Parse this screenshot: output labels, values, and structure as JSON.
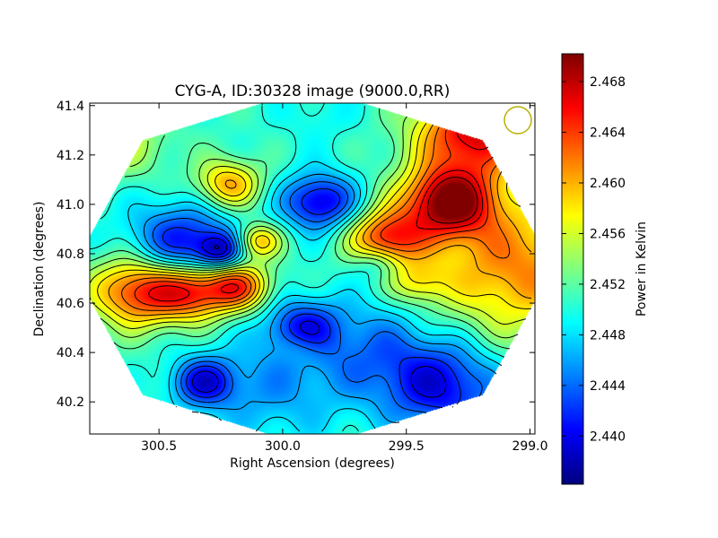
{
  "chart_data": {
    "type": "heatmap",
    "title": "CYG-A, ID:30328 image (9000.0,RR)",
    "xlabel": "Right Ascension (degrees)",
    "ylabel": "Declination (degrees)",
    "colorbar_label": "Power in Kelvin",
    "xlim": [
      300.78,
      298.98
    ],
    "ylim": [
      40.07,
      41.41
    ],
    "x_ticks": [
      {
        "value": 300.5,
        "label": "300.5"
      },
      {
        "value": 300.0,
        "label": "300.0"
      },
      {
        "value": 299.5,
        "label": "299.5"
      },
      {
        "value": 299.0,
        "label": "299.0"
      }
    ],
    "y_ticks": [
      {
        "value": 40.2,
        "label": "40.2"
      },
      {
        "value": 40.4,
        "label": "40.4"
      },
      {
        "value": 40.6,
        "label": "40.6"
      },
      {
        "value": 40.8,
        "label": "40.8"
      },
      {
        "value": 41.0,
        "label": "41.0"
      },
      {
        "value": 41.2,
        "label": "41.2"
      },
      {
        "value": 41.4,
        "label": "41.4"
      }
    ],
    "colorbar_range": [
      2.4362,
      2.4702
    ],
    "colorbar_ticks": [
      {
        "value": 2.44,
        "label": "2.440"
      },
      {
        "value": 2.444,
        "label": "2.444"
      },
      {
        "value": 2.448,
        "label": "2.448"
      },
      {
        "value": 2.452,
        "label": "2.452"
      },
      {
        "value": 2.456,
        "label": "2.456"
      },
      {
        "value": 2.46,
        "label": "2.460"
      },
      {
        "value": 2.464,
        "label": "2.464"
      },
      {
        "value": 2.468,
        "label": "2.468"
      }
    ],
    "colormap": "jet",
    "contours": true,
    "background_level": 2.4505,
    "features": [
      {
        "ra": 300.58,
        "dec": 40.65,
        "value": 2.4655,
        "width": 0.1
      },
      {
        "ra": 300.36,
        "dec": 40.65,
        "value": 2.464,
        "width": 0.08
      },
      {
        "ra": 300.18,
        "dec": 40.67,
        "value": 2.4635,
        "width": 0.07
      },
      {
        "ra": 299.33,
        "dec": 41.01,
        "value": 2.469,
        "width": 0.1
      },
      {
        "ra": 299.23,
        "dec": 41.29,
        "value": 2.467,
        "width": 0.12
      },
      {
        "ra": 299.58,
        "dec": 40.86,
        "value": 2.464,
        "width": 0.08
      },
      {
        "ra": 299.05,
        "dec": 40.75,
        "value": 2.4615,
        "width": 0.2
      },
      {
        "ra": 300.22,
        "dec": 41.08,
        "value": 2.4605,
        "width": 0.07
      },
      {
        "ra": 300.1,
        "dec": 40.85,
        "value": 2.4605,
        "width": 0.05
      },
      {
        "ra": 299.45,
        "dec": 40.68,
        "value": 2.456,
        "width": 0.06
      },
      {
        "ra": 299.85,
        "dec": 41.01,
        "value": 2.439,
        "width": 0.08
      },
      {
        "ra": 300.4,
        "dec": 40.83,
        "value": 2.44,
        "width": 0.12
      },
      {
        "ra": 300.25,
        "dec": 40.81,
        "value": 2.442,
        "width": 0.05
      },
      {
        "ra": 299.92,
        "dec": 40.5,
        "value": 2.442,
        "width": 0.08
      },
      {
        "ra": 300.32,
        "dec": 40.28,
        "value": 2.441,
        "width": 0.07
      },
      {
        "ra": 299.35,
        "dec": 40.26,
        "value": 2.4405,
        "width": 0.13
      },
      {
        "ra": 299.62,
        "dec": 40.76,
        "value": 2.446,
        "width": 0.05
      },
      {
        "ra": 299.63,
        "dec": 40.42,
        "value": 2.445,
        "width": 0.15
      },
      {
        "ra": 300.05,
        "dec": 40.25,
        "value": 2.446,
        "width": 0.15
      },
      {
        "ra": 300.65,
        "dec": 41.25,
        "value": 2.4555,
        "width": 0.1
      },
      {
        "ra": 299.85,
        "dec": 41.36,
        "value": 2.449,
        "width": 0.08
      },
      {
        "ra": 299.92,
        "dec": 40.42,
        "value": 2.4535,
        "width": 0.05
      }
    ]
  }
}
